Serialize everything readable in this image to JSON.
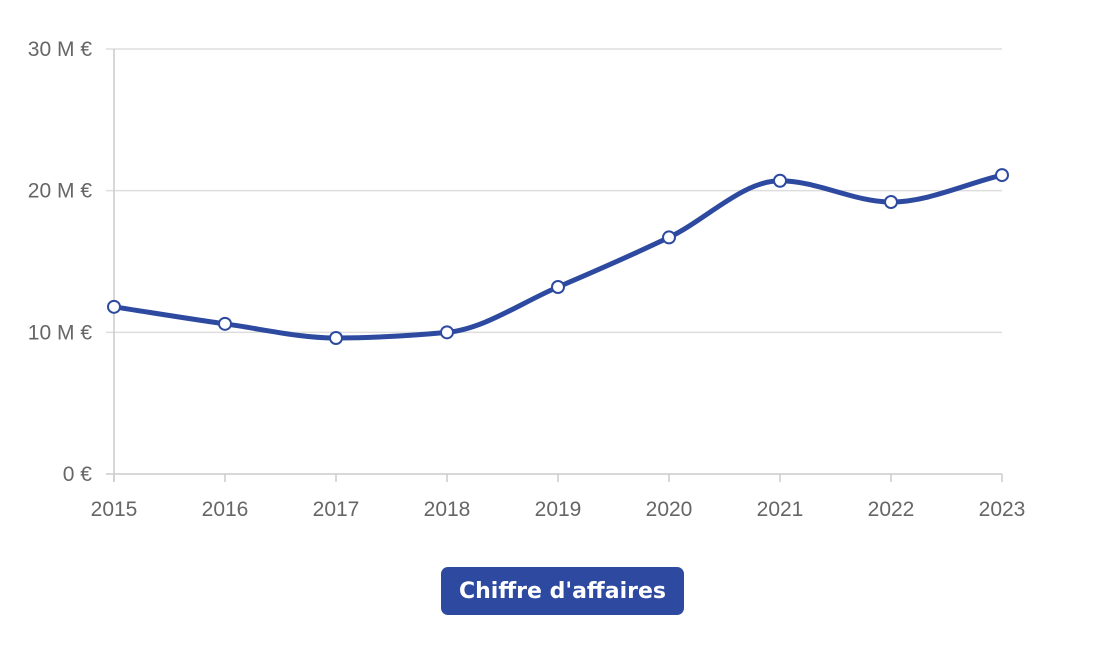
{
  "chart_data": {
    "type": "line",
    "categories": [
      "2015",
      "2016",
      "2017",
      "2018",
      "2019",
      "2020",
      "2021",
      "2022",
      "2023"
    ],
    "series": [
      {
        "name": "Chiffre d'affaires",
        "values": [
          11.8,
          10.6,
          9.6,
          10.0,
          13.2,
          16.7,
          20.7,
          19.2,
          21.1
        ]
      }
    ],
    "title": "",
    "xlabel": "",
    "ylabel": "",
    "ylim": [
      0,
      30
    ],
    "y_ticks": [
      {
        "value": 0,
        "label": "0 €"
      },
      {
        "value": 10,
        "label": "10 M €"
      },
      {
        "value": 20,
        "label": "20 M €"
      },
      {
        "value": 30,
        "label": "30 M €"
      }
    ],
    "grid": true,
    "legend_position": "bottom-center",
    "colors": {
      "line": "#2d4aa0",
      "point_fill": "#ffffff",
      "grid": "#dddddd",
      "axis": "#cccccc",
      "tick_text": "#666666"
    }
  },
  "legend": {
    "label": "Chiffre d'affaires"
  }
}
